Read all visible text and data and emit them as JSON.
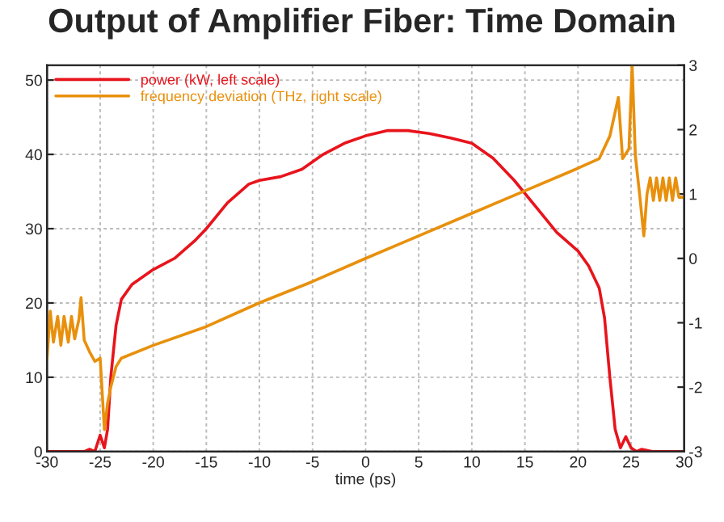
{
  "chart_data": {
    "type": "line",
    "title": "Output of Amplifier Fiber: Time Domain",
    "xlabel": "time (ps)",
    "xlim": [
      -30,
      30
    ],
    "xticks": [
      -30,
      -25,
      -20,
      -15,
      -10,
      -5,
      0,
      5,
      10,
      15,
      20,
      25,
      30
    ],
    "ylim": [
      0,
      52
    ],
    "yticks": [
      0,
      10,
      20,
      30,
      40,
      50
    ],
    "y2lim": [
      -3,
      3
    ],
    "y2ticks": [
      -3,
      -2,
      -1,
      0,
      1,
      2,
      3
    ],
    "grid": true,
    "legend": "top left",
    "line_style": "solid",
    "marker": "none",
    "series": [
      {
        "name": "power (kW, left scale)",
        "color": "#e8141c",
        "x": [
          -30,
          -26.5,
          -26,
          -25.5,
          -25,
          -24.6,
          -24.3,
          -24,
          -23.5,
          -23,
          -22,
          -20,
          -18,
          -16,
          -15,
          -13,
          -11,
          -10,
          -8,
          -6,
          -4,
          -2,
          0,
          2,
          4,
          6,
          8,
          10,
          12,
          14,
          16,
          18,
          20,
          21,
          22,
          22.5,
          23,
          23.5,
          24,
          24.5,
          25,
          25.5,
          26,
          27,
          30
        ],
        "values": [
          0,
          0,
          0.3,
          0,
          2.2,
          0.5,
          3,
          10,
          17,
          20.5,
          22.5,
          24.5,
          26,
          28.5,
          30,
          33.5,
          36,
          36.5,
          37,
          38,
          40,
          41.5,
          42.5,
          43.2,
          43.2,
          42.8,
          42.2,
          41.5,
          39.5,
          36.5,
          33,
          29.5,
          27,
          25,
          22,
          18,
          10,
          3,
          0.5,
          2,
          0.5,
          0,
          0.3,
          0,
          0
        ]
      },
      {
        "name": "frequency deviation (THz, right scale)",
        "color": "#e8900c",
        "axis": "y2",
        "x": [
          -30,
          -29.7,
          -29.4,
          -29,
          -28.7,
          -28.4,
          -28,
          -27.7,
          -27.4,
          -27,
          -26.8,
          -26.5,
          -26,
          -25.5,
          -25,
          -24.6,
          -24.3,
          -24,
          -23.5,
          -23,
          -20,
          -15,
          -10,
          -5,
          0,
          5,
          10,
          15,
          20,
          22,
          23,
          23.8,
          24.2,
          24.8,
          25.1,
          25.4,
          25.8,
          26.2,
          26.5,
          26.8,
          27.1,
          27.4,
          27.7,
          28,
          28.3,
          28.6,
          28.9,
          29.2,
          29.5,
          30
        ],
        "values": [
          -1.55,
          -0.82,
          -1.3,
          -0.9,
          -1.35,
          -0.9,
          -1.3,
          -0.9,
          -1.25,
          -0.95,
          -0.61,
          -1.27,
          -1.45,
          -1.6,
          -1.55,
          -2.66,
          -2.25,
          -2.0,
          -1.68,
          -1.55,
          -1.35,
          -1.06,
          -0.69,
          -0.36,
          0,
          0.35,
          0.7,
          1.05,
          1.4,
          1.55,
          1.9,
          2.5,
          1.55,
          1.7,
          3.0,
          1.6,
          1.0,
          0.35,
          1.0,
          1.25,
          0.9,
          1.25,
          0.9,
          1.25,
          0.9,
          1.25,
          0.9,
          1.25,
          0.95,
          0.95
        ]
      }
    ]
  }
}
